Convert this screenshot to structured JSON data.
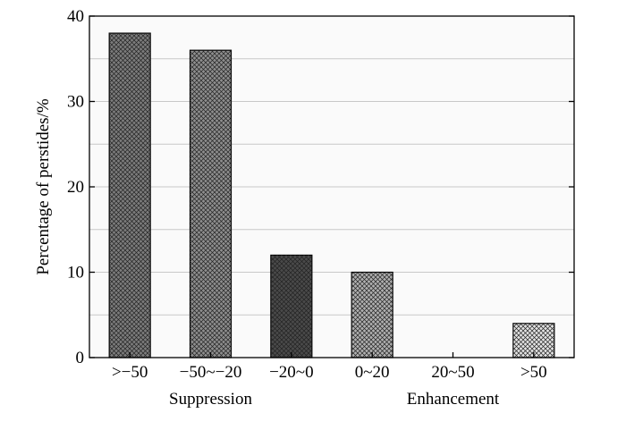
{
  "chart_data": {
    "type": "bar",
    "categories": [
      ">−50",
      "−50~−20",
      "−20~0",
      "0~20",
      "20~50",
      ">50"
    ],
    "values": [
      38,
      36,
      12,
      10,
      0,
      4
    ],
    "ylabel": "Percentage of perstides/%",
    "xlabel": "",
    "ylim": [
      0,
      40
    ],
    "yticks": [
      0,
      10,
      20,
      30,
      40
    ],
    "grid": true,
    "category_groups": [
      {
        "label": "Suppression",
        "categories": [
          ">−50",
          "−50~−20",
          "−20~0"
        ]
      },
      {
        "label": "Enhancement",
        "categories": [
          "0~20",
          "20~50",
          ">50"
        ]
      }
    ],
    "bar_fills": [
      "#7c7c7c",
      "#8e8e8e",
      "#4a4a4a",
      "#b0b0b0",
      "#cfcfcf",
      "#e3e3e3"
    ]
  }
}
